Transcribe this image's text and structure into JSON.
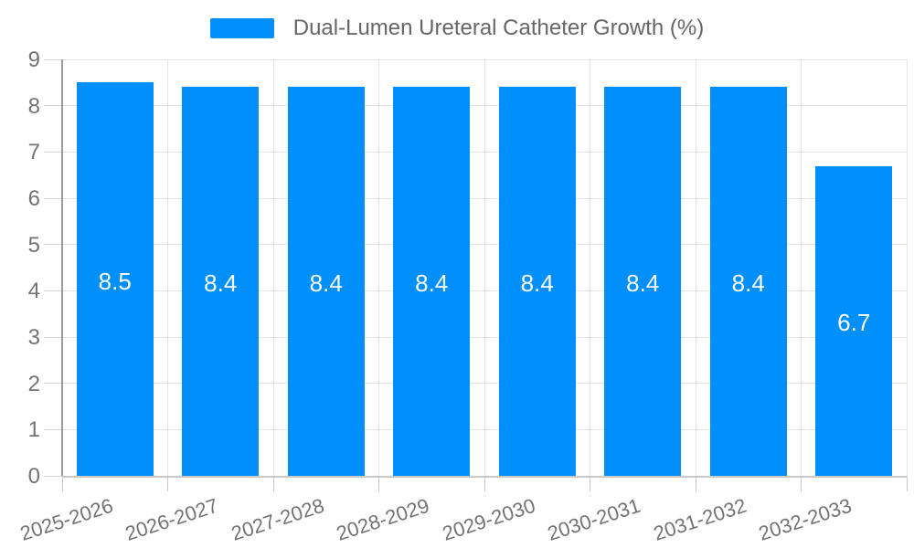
{
  "legend": {
    "series_label": "Dual-Lumen Ureteral Catheter Growth (%)",
    "swatch_color": "#008FFB"
  },
  "chart_data": {
    "type": "bar",
    "title": "Dual-Lumen Ureteral Catheter Growth (%)",
    "categories": [
      "2025-2026",
      "2026-2027",
      "2027-2028",
      "2028-2029",
      "2029-2030",
      "2030-2031",
      "2031-2032",
      "2032-2033"
    ],
    "values": [
      8.5,
      8.4,
      8.4,
      8.4,
      8.4,
      8.4,
      8.4,
      6.7
    ],
    "value_labels": [
      "8.5",
      "8.4",
      "8.4",
      "8.4",
      "8.4",
      "8.4",
      "8.4",
      "6.7"
    ],
    "xlabel": "",
    "ylabel": "",
    "ylim": [
      0,
      9
    ],
    "y_ticks": [
      0,
      1,
      2,
      3,
      4,
      5,
      6,
      7,
      8,
      9
    ],
    "grid": true,
    "legend_position": "top",
    "bar_color": "#008FFB",
    "value_label_color": "#ffffff",
    "axis_label_color": "#737373",
    "grid_color": "#e3e3e3",
    "axis_line_color": "#9a9a9a"
  }
}
